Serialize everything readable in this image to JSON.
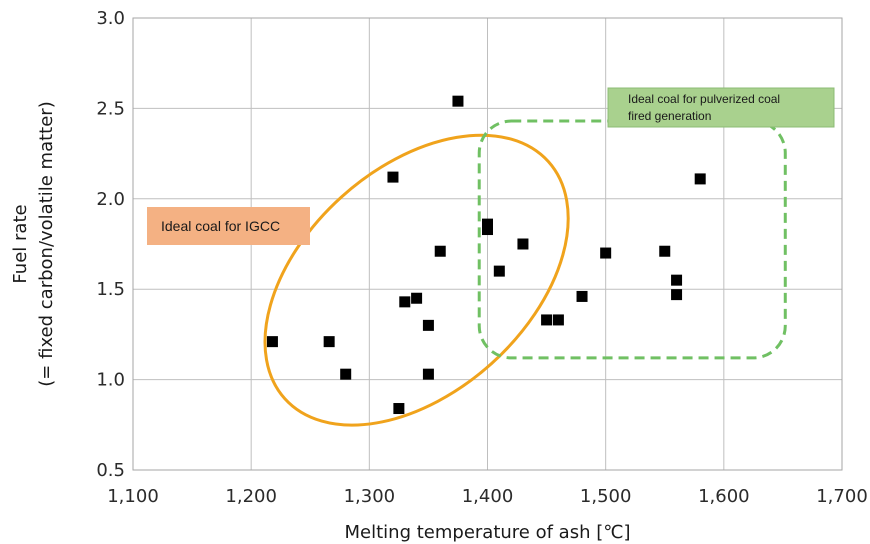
{
  "chart_data": {
    "type": "scatter",
    "xlabel": "Melting temperature of ash [℃]",
    "ylabel_line1": "Fuel rate",
    "ylabel_line2": "(= fixed carbon/volatile matter)",
    "xlim": [
      1100,
      1700
    ],
    "ylim": [
      0.5,
      3.0
    ],
    "xticks": [
      1100,
      1200,
      1300,
      1400,
      1500,
      1600,
      1700
    ],
    "xtick_labels": [
      "1,100",
      "1,200",
      "1,300",
      "1,400",
      "1,500",
      "1,600",
      "1,700"
    ],
    "yticks": [
      0.5,
      1.0,
      1.5,
      2.0,
      2.5,
      3.0
    ],
    "ytick_labels": [
      "0.5",
      "1.0",
      "1.5",
      "2.0",
      "2.5",
      "3.0"
    ],
    "grid": true,
    "marker_color": "#000000",
    "points": [
      {
        "x": 1218,
        "y": 1.21
      },
      {
        "x": 1266,
        "y": 1.21
      },
      {
        "x": 1280,
        "y": 1.03
      },
      {
        "x": 1320,
        "y": 2.12
      },
      {
        "x": 1325,
        "y": 0.84
      },
      {
        "x": 1330,
        "y": 1.43
      },
      {
        "x": 1340,
        "y": 1.45
      },
      {
        "x": 1350,
        "y": 1.3
      },
      {
        "x": 1350,
        "y": 1.03
      },
      {
        "x": 1360,
        "y": 1.71
      },
      {
        "x": 1375,
        "y": 2.54
      },
      {
        "x": 1400,
        "y": 1.86
      },
      {
        "x": 1400,
        "y": 1.83
      },
      {
        "x": 1410,
        "y": 1.6
      },
      {
        "x": 1430,
        "y": 1.75
      },
      {
        "x": 1450,
        "y": 1.33
      },
      {
        "x": 1460,
        "y": 1.33
      },
      {
        "x": 1480,
        "y": 1.46
      },
      {
        "x": 1500,
        "y": 1.7
      },
      {
        "x": 1550,
        "y": 1.71
      },
      {
        "x": 1560,
        "y": 1.55
      },
      {
        "x": 1560,
        "y": 1.47
      },
      {
        "x": 1580,
        "y": 2.11
      }
    ],
    "annotations": {
      "igcc": {
        "label": "Ideal coal for IGCC",
        "color": "#f0a31c",
        "fill": "#f4b183",
        "region": {
          "cx": 1340,
          "cy": 1.55,
          "rx": 150,
          "ry": 0.62
        }
      },
      "pulverized": {
        "line1": "Ideal coal for pulverized coal",
        "line2": "fired generation",
        "color": "#70c063",
        "fill": "#a9d18e",
        "region": {
          "x0": 1393,
          "x1": 1652,
          "y0": 1.12,
          "y1": 2.43
        }
      }
    }
  }
}
